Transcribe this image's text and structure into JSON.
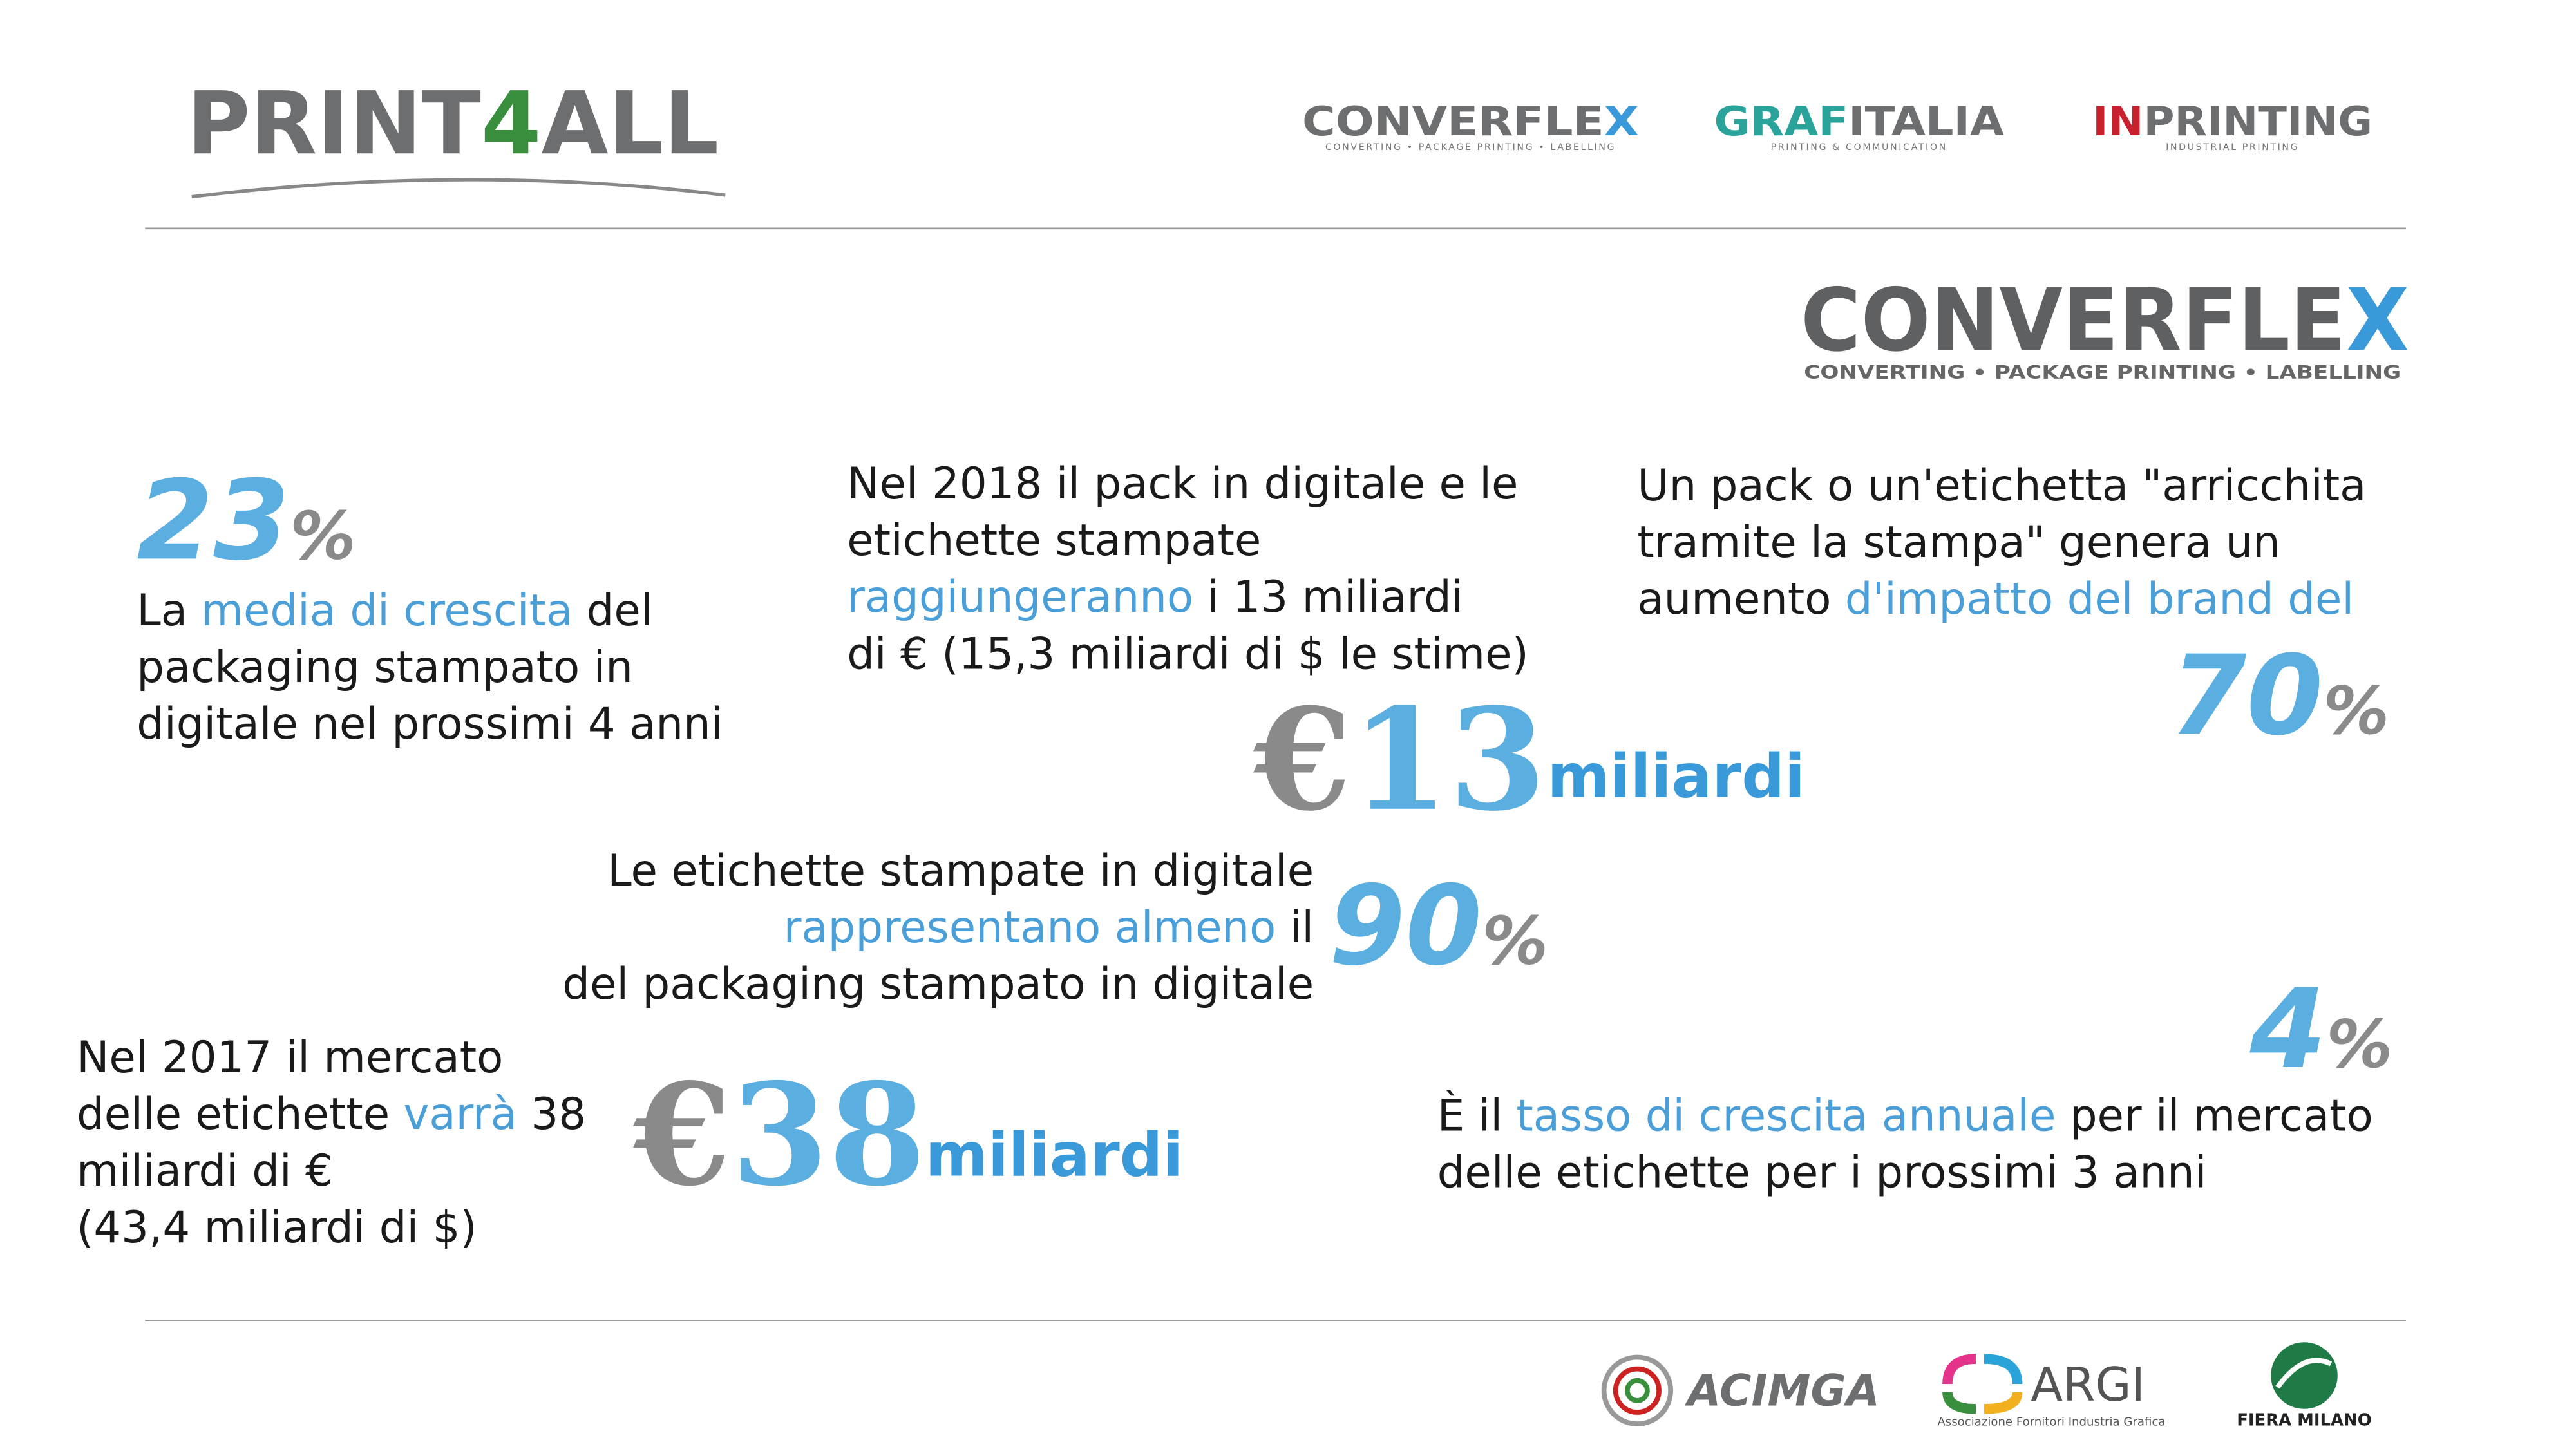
{
  "header": {
    "logo": [
      {
        "text": "PRINT",
        "color": "#6d6e70"
      },
      {
        "text": "4",
        "color": "#3a8f3e"
      },
      {
        "text": "ALL",
        "color": "#6d6e70"
      }
    ],
    "partners": [
      {
        "name": [
          {
            "text": "CONVERFLE",
            "color": "#6d6e70"
          },
          {
            "text": "X",
            "color": "#3a9ad9"
          }
        ],
        "tagline": "CONVERTING • PACKAGE PRINTING • LABELLING"
      },
      {
        "name": [
          {
            "text": "GRAF",
            "color": "#2aa39a"
          },
          {
            "text": "ITALIA",
            "color": "#6d6e70"
          }
        ],
        "tagline": "PRINTING & COMMUNICATION"
      },
      {
        "name": [
          {
            "text": "IN",
            "color": "#c8202f"
          },
          {
            "text": "PRINTING",
            "color": "#6d6e70"
          }
        ],
        "tagline": "INDUSTRIAL PRINTING"
      }
    ]
  },
  "brand": {
    "name": [
      {
        "text": "CONVERFLE",
        "color": "#5f6062"
      },
      {
        "text": "X",
        "color": "#3a9ad9"
      }
    ],
    "tagline": "CONVERTING • PACKAGE PRINTING • LABELLING"
  },
  "stats": [
    {
      "figure": [
        {
          "text": "23",
          "color": "#5aaee0"
        },
        {
          "text": "%",
          "color": "#8a8a8a"
        }
      ],
      "lines": [
        [
          {
            "text": "La "
          },
          {
            "text": "media di crescita",
            "color": "#4a9fd8"
          },
          {
            "text": " del"
          }
        ],
        [
          {
            "text": "packaging stampato in"
          }
        ],
        [
          {
            "text": "digitale nel prossimi 4 anni"
          }
        ]
      ]
    },
    {
      "figure": [
        {
          "text": "€",
          "color": "#8a8a8a"
        },
        {
          "text": "13",
          "color": "#5aaee0"
        }
      ],
      "unit": "miliardi",
      "lines": [
        [
          {
            "text": "Nel 2018 il pack in digitale e le"
          }
        ],
        [
          {
            "text": "etichette stampate"
          }
        ],
        [
          {
            "text": "raggiungeranno",
            "color": "#4a9fd8"
          },
          {
            "text": " i 13 miliardi"
          }
        ],
        [
          {
            "text": "di € (15,3 miliardi di $ le stime)"
          }
        ]
      ]
    },
    {
      "figure": [
        {
          "text": "70",
          "color": "#5aaee0"
        },
        {
          "text": "%",
          "color": "#8a8a8a"
        }
      ],
      "lines": [
        [
          {
            "text": "Un pack o un'etichetta \"arricchita"
          }
        ],
        [
          {
            "text": "tramite la stampa\" genera un"
          }
        ],
        [
          {
            "text": "aumento "
          },
          {
            "text": "d'impatto del brand del",
            "color": "#4a9fd8"
          }
        ]
      ]
    },
    {
      "figure": [
        {
          "text": "90",
          "color": "#5aaee0"
        },
        {
          "text": "%",
          "color": "#8a8a8a"
        }
      ],
      "lines": [
        [
          {
            "text": "Le etichette stampate in digitale"
          }
        ],
        [
          {
            "text": "rappresentano almeno",
            "color": "#4a9fd8"
          },
          {
            "text": " il"
          }
        ],
        [
          {
            "text": "del packaging stampato in digitale"
          }
        ]
      ]
    },
    {
      "figure": [
        {
          "text": "€",
          "color": "#8a8a8a"
        },
        {
          "text": "38",
          "color": "#5aaee0"
        }
      ],
      "unit": "miliardi",
      "lines": [
        [
          {
            "text": "Nel 2017 il mercato"
          }
        ],
        [
          {
            "text": "delle etichette "
          },
          {
            "text": "varrà",
            "color": "#4a9fd8"
          },
          {
            "text": " 38"
          }
        ],
        [
          {
            "text": "miliardi di €"
          }
        ],
        [
          {
            "text": "(43,4 miliardi di $)"
          }
        ]
      ]
    },
    {
      "figure": [
        {
          "text": "4",
          "color": "#5aaee0"
        },
        {
          "text": "%",
          "color": "#8a8a8a"
        }
      ],
      "lines": [
        [
          {
            "text": "È il "
          },
          {
            "text": "tasso di crescita annuale",
            "color": "#4a9fd8"
          },
          {
            "text": " per il mercato"
          }
        ],
        [
          {
            "text": "delle etichette per i prossimi 3 anni"
          }
        ]
      ]
    }
  ],
  "footer": {
    "sponsors": [
      {
        "name": "ACIMGA"
      },
      {
        "name": "ARGI",
        "tagline": "Associazione Fornitori Industria Grafica"
      },
      {
        "name": "FIERA MILANO"
      }
    ]
  }
}
